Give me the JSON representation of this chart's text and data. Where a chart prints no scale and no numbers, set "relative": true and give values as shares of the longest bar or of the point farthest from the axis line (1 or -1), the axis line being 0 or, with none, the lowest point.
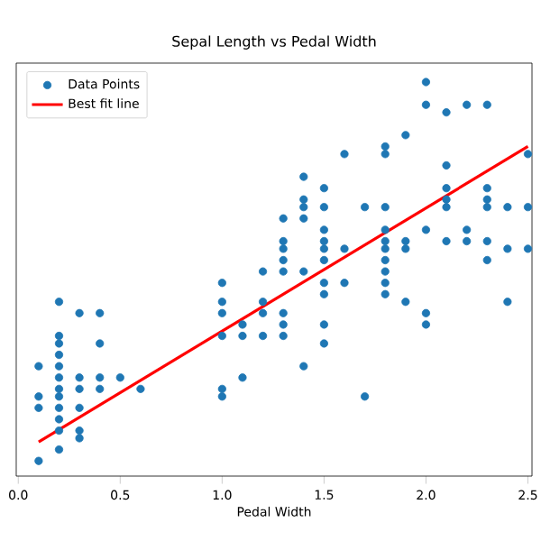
{
  "chart_data": {
    "type": "scatter",
    "title": "Sepal Length vs Pedal Width",
    "xlabel": "Pedal Width",
    "relative": true,
    "tick_labels": "x",
    "legend": "top left",
    "grid": false,
    "xlim": [
      -0.01,
      2.52
    ],
    "xticks": [
      {
        "value": 0,
        "label": "0.0"
      },
      {
        "value": 0.5,
        "label": "0.5"
      },
      {
        "value": 1,
        "label": "1.0"
      },
      {
        "value": 1.5,
        "label": "1.5"
      },
      {
        "value": 2,
        "label": "2.0"
      },
      {
        "value": 2.5,
        "label": "2.5"
      }
    ],
    "series": [
      {
        "name": "Data Points",
        "color": "#1f77b4",
        "marker": "circle",
        "x": [
          0.1,
          0.1,
          0.1,
          0.1,
          0.2,
          0.2,
          0.2,
          0.2,
          0.2,
          0.2,
          0.2,
          0.2,
          0.2,
          0.2,
          0.2,
          0.2,
          0.3,
          0.3,
          0.3,
          0.3,
          0.3,
          0.3,
          0.4,
          0.4,
          0.4,
          0.4,
          0.5,
          0.6,
          1.0,
          1.0,
          1.0,
          1.0,
          1.0,
          1.0,
          1.1,
          1.1,
          1.1,
          1.2,
          1.2,
          1.2,
          1.2,
          1.3,
          1.3,
          1.3,
          1.3,
          1.3,
          1.3,
          1.3,
          1.3,
          1.4,
          1.4,
          1.4,
          1.4,
          1.4,
          1.4,
          1.5,
          1.5,
          1.5,
          1.5,
          1.5,
          1.5,
          1.5,
          1.5,
          1.5,
          1.5,
          1.6,
          1.6,
          1.6,
          1.7,
          1.7,
          1.8,
          1.8,
          1.8,
          1.8,
          1.8,
          1.8,
          1.8,
          1.8,
          1.8,
          1.8,
          1.9,
          1.9,
          1.9,
          1.9,
          2.0,
          2.0,
          2.0,
          2.0,
          2.0,
          2.1,
          2.1,
          2.1,
          2.1,
          2.1,
          2.1,
          2.2,
          2.2,
          2.2,
          2.3,
          2.3,
          2.3,
          2.3,
          2.3,
          2.3,
          2.4,
          2.4,
          2.4,
          2.5,
          2.5,
          2.5
        ],
        "values": [
          0.25,
          0.17,
          0.14,
          0,
          0.42,
          0.33,
          0.31,
          0.28,
          0.25,
          0.22,
          0.19,
          0.17,
          0.14,
          0.11,
          0.08,
          0.03,
          0.39,
          0.22,
          0.19,
          0.14,
          0.08,
          0.06,
          0.39,
          0.31,
          0.22,
          0.19,
          0.22,
          0.19,
          0.47,
          0.42,
          0.39,
          0.33,
          0.19,
          0.17,
          0.36,
          0.33,
          0.22,
          0.5,
          0.42,
          0.39,
          0.33,
          0.64,
          0.58,
          0.56,
          0.53,
          0.5,
          0.39,
          0.36,
          0.33,
          0.75,
          0.69,
          0.67,
          0.64,
          0.5,
          0.25,
          0.72,
          0.67,
          0.61,
          0.58,
          0.56,
          0.53,
          0.47,
          0.44,
          0.36,
          0.31,
          0.81,
          0.56,
          0.47,
          0.67,
          0.17,
          0.83,
          0.81,
          0.67,
          0.61,
          0.58,
          0.56,
          0.53,
          0.5,
          0.47,
          0.44,
          0.86,
          0.58,
          0.56,
          0.42,
          1,
          0.94,
          0.61,
          0.39,
          0.36,
          0.92,
          0.78,
          0.72,
          0.69,
          0.67,
          0.58,
          0.94,
          0.61,
          0.58,
          0.94,
          0.72,
          0.69,
          0.67,
          0.58,
          0.53,
          0.67,
          0.56,
          0.42,
          0.81,
          0.67,
          0.56
        ]
      },
      {
        "name": "Best fit line",
        "type": "line",
        "color": "#ff0000",
        "marker": "none",
        "line_style": "solid",
        "x": [
          0.1,
          2.5
        ],
        "values": [
          0.05,
          0.83
        ]
      }
    ]
  }
}
